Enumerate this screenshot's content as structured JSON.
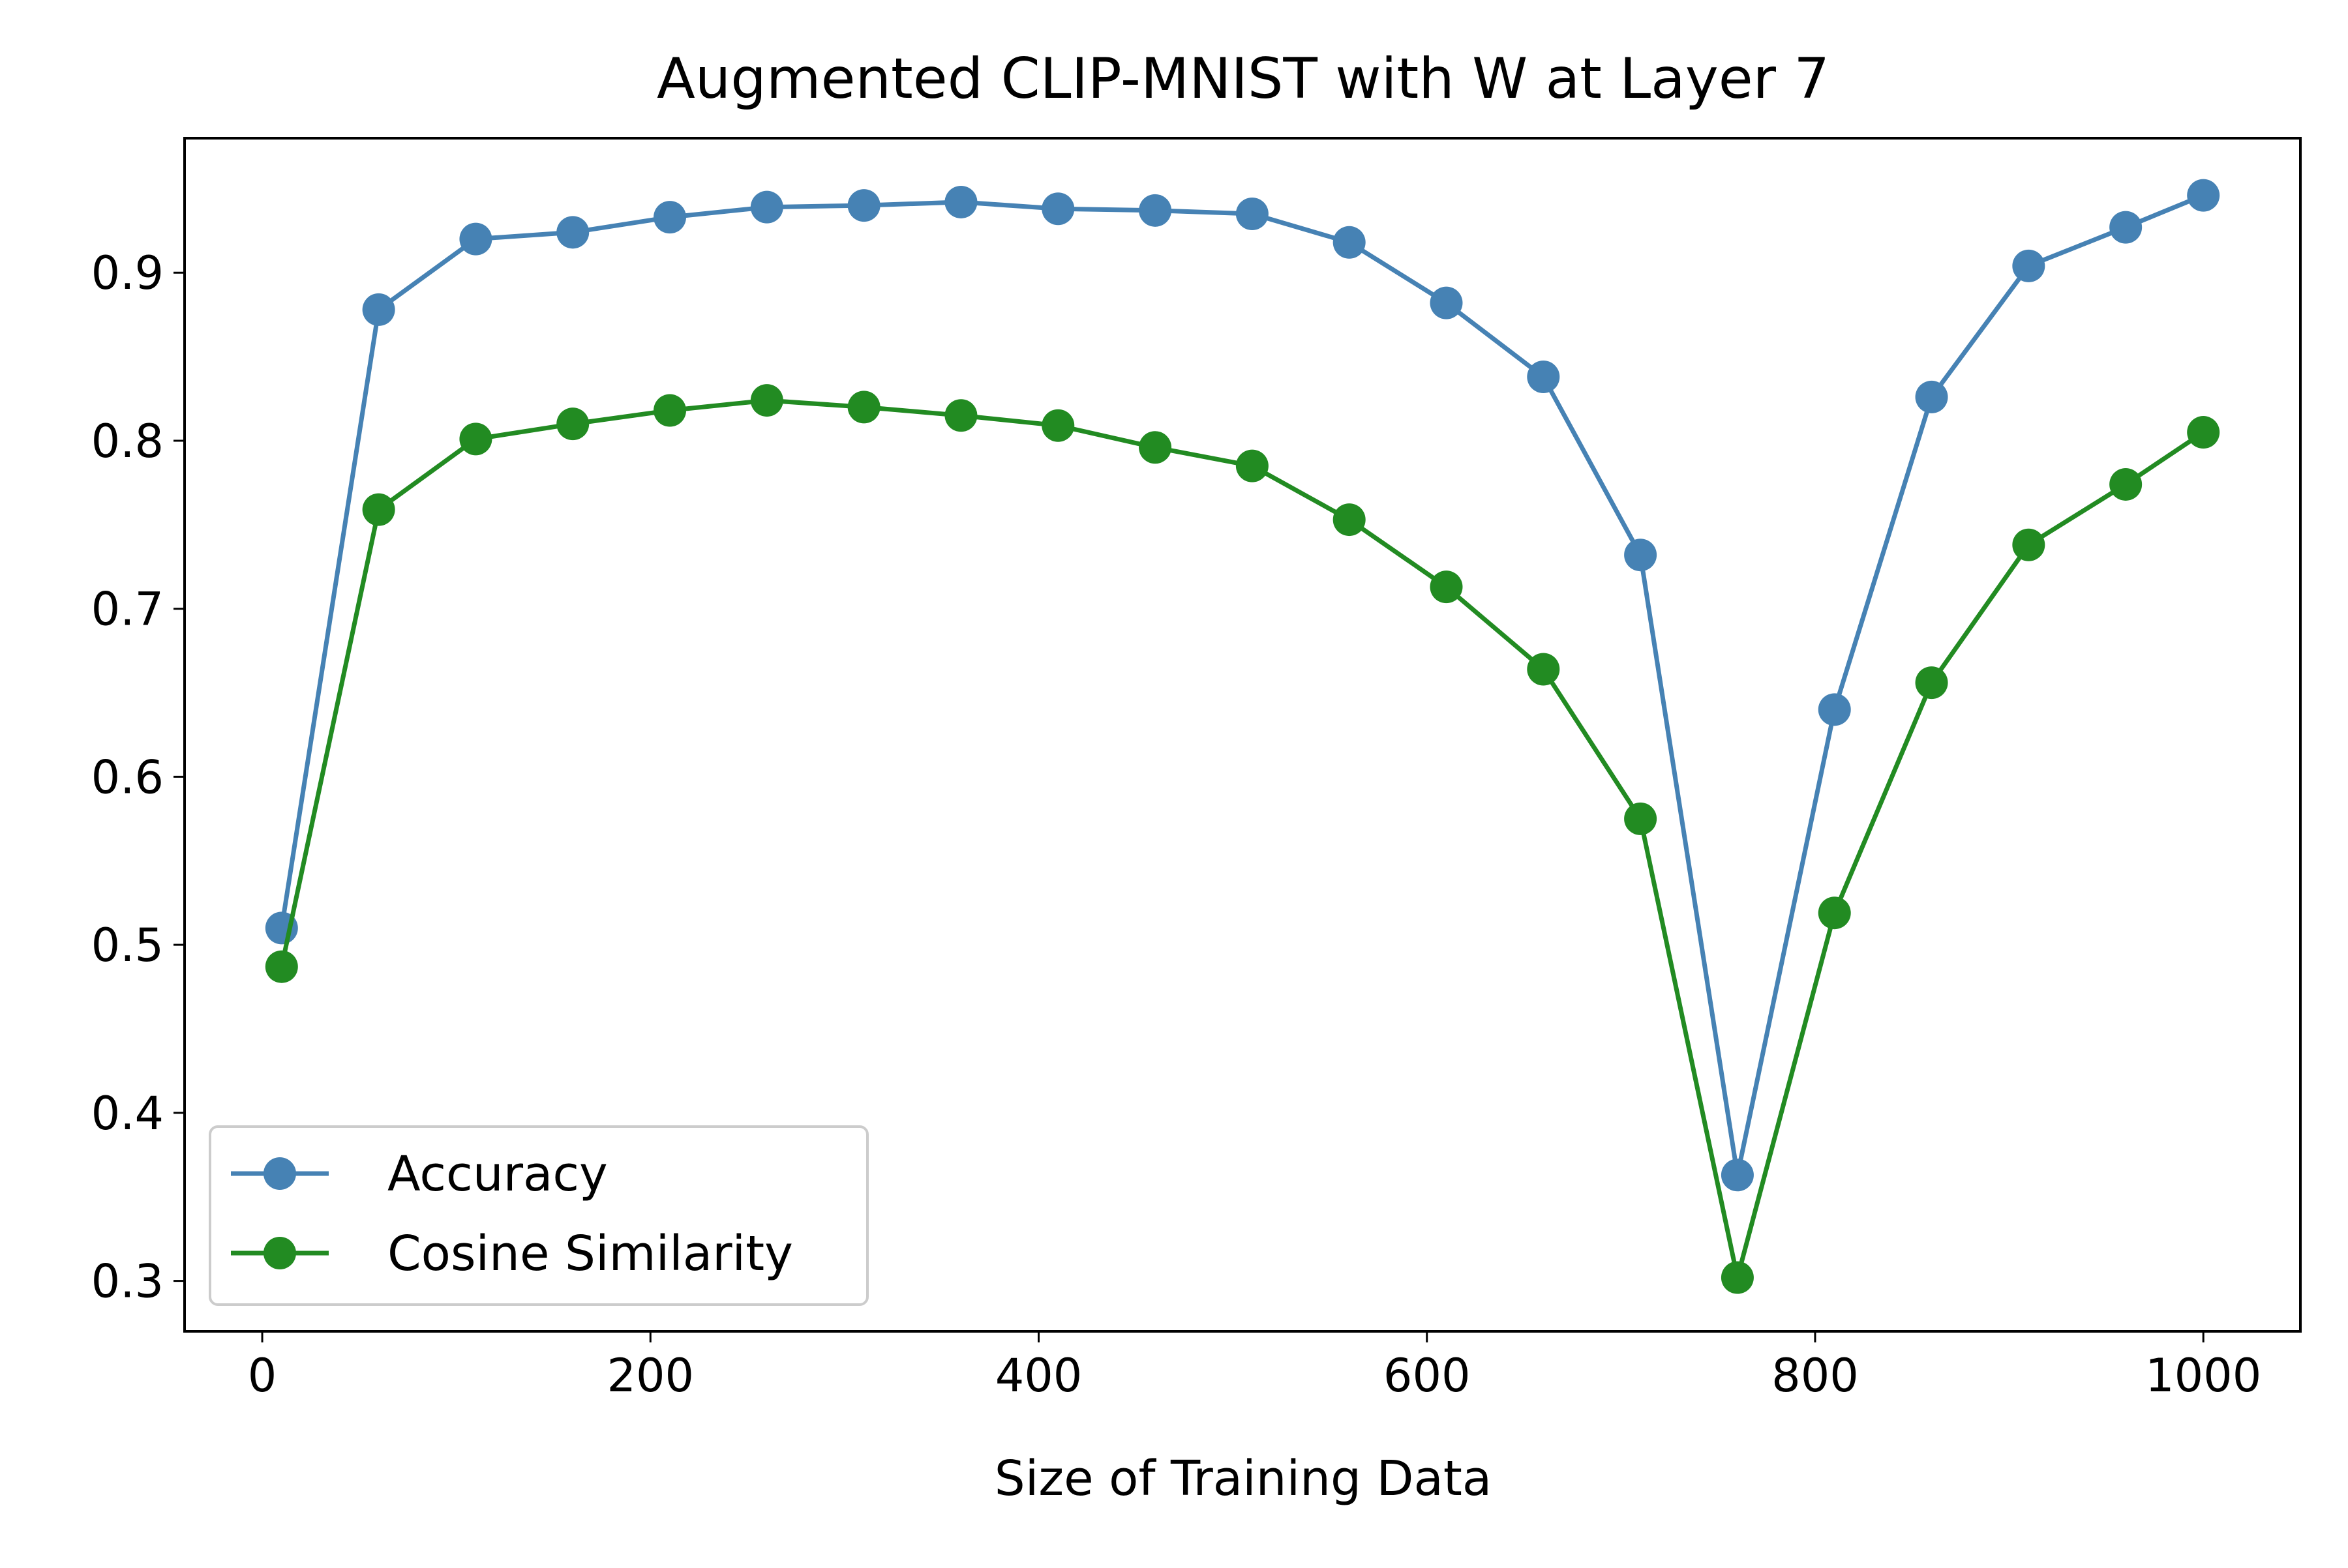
{
  "chart_data": {
    "type": "line",
    "title": "Augmented CLIP-MNIST with W at Layer 7",
    "xlabel": "Size of Training Data",
    "ylabel": "",
    "xlim": [
      -40,
      1050
    ],
    "ylim": [
      0.27,
      0.98
    ],
    "xticks": [
      0,
      200,
      400,
      600,
      800,
      1000
    ],
    "xtick_labels": [
      "0",
      "200",
      "400",
      "600",
      "800",
      "1000"
    ],
    "yticks": [
      0.3,
      0.4,
      0.5,
      0.6,
      0.7,
      0.8,
      0.9
    ],
    "ytick_labels": [
      "0.3",
      "0.4",
      "0.5",
      "0.6",
      "0.7",
      "0.8",
      "0.9"
    ],
    "grid": false,
    "legend_position": "lower-left",
    "x": [
      10,
      60,
      110,
      160,
      210,
      260,
      310,
      360,
      410,
      460,
      510,
      560,
      610,
      660,
      710,
      760,
      810,
      860,
      910,
      960,
      1000
    ],
    "series": [
      {
        "name": "Accuracy",
        "color": "#4682b4",
        "marker": "circle",
        "values": [
          0.51,
          0.878,
          0.92,
          0.924,
          0.933,
          0.939,
          0.94,
          0.942,
          0.938,
          0.937,
          0.935,
          0.918,
          0.882,
          0.838,
          0.732,
          0.363,
          0.64,
          0.826,
          0.904,
          0.927,
          0.946
        ]
      },
      {
        "name": "Cosine Similarity",
        "color": "#228b22",
        "marker": "circle",
        "values": [
          0.487,
          0.759,
          0.801,
          0.81,
          0.818,
          0.824,
          0.82,
          0.815,
          0.809,
          0.796,
          0.785,
          0.753,
          0.713,
          0.664,
          0.575,
          0.302,
          0.519,
          0.656,
          0.738,
          0.774,
          0.805
        ]
      }
    ]
  }
}
